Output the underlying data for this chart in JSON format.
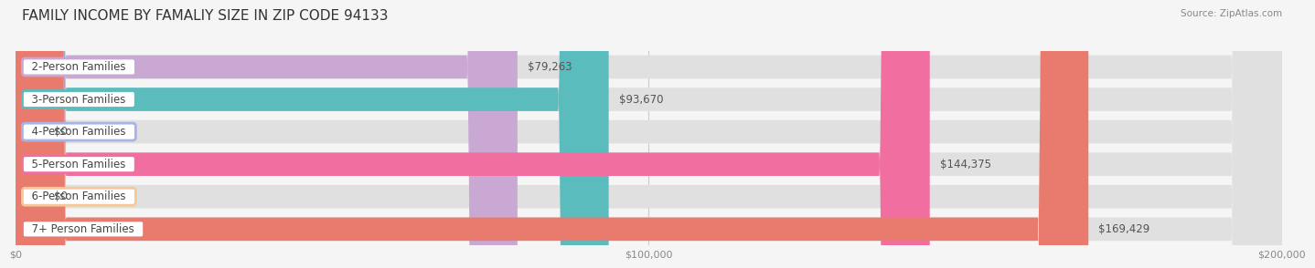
{
  "title": "FAMILY INCOME BY FAMALIY SIZE IN ZIP CODE 94133",
  "source": "Source: ZipAtlas.com",
  "categories": [
    "2-Person Families",
    "3-Person Families",
    "4-Person Families",
    "5-Person Families",
    "6-Person Families",
    "7+ Person Families"
  ],
  "values": [
    79263,
    93670,
    0,
    144375,
    0,
    169429
  ],
  "bar_colors": [
    "#c9a8d4",
    "#5bbcbe",
    "#a8b4e8",
    "#f06fa0",
    "#f5c89a",
    "#e87b6e"
  ],
  "label_colors": [
    "#555555",
    "#555555",
    "#555555",
    "#ffffff",
    "#555555",
    "#ffffff"
  ],
  "value_inside_color": [
    "#555555",
    "#555555",
    "#555555",
    "#ffffff",
    "#555555",
    "#ffffff"
  ],
  "xlim": [
    0,
    200000
  ],
  "xticks": [
    0,
    100000,
    200000
  ],
  "xtick_labels": [
    "$0",
    "$100,000",
    "$200,000"
  ],
  "bar_height": 0.72,
  "row_bg_color": "#e8e8e8",
  "background_color": "#f5f5f5",
  "title_fontsize": 11,
  "label_fontsize": 8.5,
  "value_fontsize": 8.5,
  "source_fontsize": 7.5
}
